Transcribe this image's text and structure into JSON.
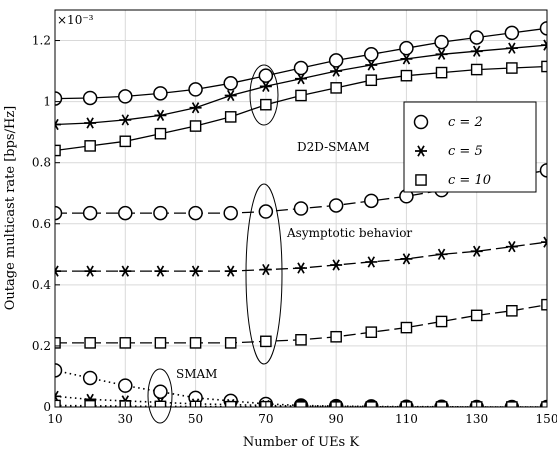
{
  "chart_data": {
    "type": "line",
    "xlabel": "Number of UEs K",
    "ylabel": "Outage multicast rate [bps/Hz]",
    "y_multiplier": "×10⁻³",
    "xlim": [
      10,
      150
    ],
    "ylim": [
      0,
      1.3
    ],
    "x_ticks": [
      10,
      30,
      50,
      70,
      90,
      110,
      130,
      150
    ],
    "y_ticks": [
      0,
      0.2,
      0.4,
      0.6,
      0.8,
      1,
      1.2
    ],
    "grid": true,
    "legend_position": "right",
    "legend": [
      {
        "label": "c = 2",
        "marker": "circle"
      },
      {
        "label": "c = 5",
        "marker": "star"
      },
      {
        "label": "c = 10",
        "marker": "square"
      }
    ],
    "annotations": [
      "D2D-SMAM",
      "Asymptotic behavior",
      "SMAM"
    ],
    "x": [
      10,
      20,
      30,
      40,
      50,
      60,
      70,
      80,
      90,
      100,
      110,
      120,
      130,
      140,
      150
    ],
    "series": [
      {
        "group": "D2D-SMAM",
        "marker": "circle",
        "line": "solid",
        "values": [
          1.01,
          1.012,
          1.017,
          1.027,
          1.04,
          1.06,
          1.085,
          1.11,
          1.135,
          1.155,
          1.175,
          1.195,
          1.21,
          1.225,
          1.24
        ]
      },
      {
        "group": "D2D-SMAM",
        "marker": "star",
        "line": "solid",
        "values": [
          0.925,
          0.93,
          0.94,
          0.955,
          0.98,
          1.02,
          1.05,
          1.075,
          1.1,
          1.12,
          1.14,
          1.155,
          1.165,
          1.175,
          1.185
        ]
      },
      {
        "group": "D2D-SMAM",
        "marker": "square",
        "line": "solid",
        "values": [
          0.84,
          0.855,
          0.87,
          0.895,
          0.92,
          0.95,
          0.99,
          1.02,
          1.045,
          1.07,
          1.085,
          1.095,
          1.105,
          1.11,
          1.115
        ]
      },
      {
        "group": "Asymptotic behavior",
        "marker": "circle",
        "line": "dashed",
        "values": [
          0.635,
          0.635,
          0.635,
          0.635,
          0.635,
          0.635,
          0.64,
          0.65,
          0.66,
          0.675,
          0.69,
          0.71,
          0.735,
          0.755,
          0.775
        ]
      },
      {
        "group": "Asymptotic behavior",
        "marker": "star",
        "line": "dashed",
        "values": [
          0.445,
          0.445,
          0.445,
          0.445,
          0.445,
          0.445,
          0.45,
          0.455,
          0.465,
          0.475,
          0.485,
          0.5,
          0.51,
          0.525,
          0.54
        ]
      },
      {
        "group": "Asymptotic behavior",
        "marker": "square",
        "line": "dashed",
        "values": [
          0.21,
          0.21,
          0.21,
          0.21,
          0.21,
          0.21,
          0.215,
          0.22,
          0.23,
          0.245,
          0.26,
          0.28,
          0.3,
          0.315,
          0.335
        ]
      },
      {
        "group": "SMAM",
        "marker": "circle",
        "line": "dotted",
        "values": [
          0.12,
          0.095,
          0.07,
          0.05,
          0.03,
          0.02,
          0.01,
          0.005,
          0.003,
          0.002,
          0.001,
          0.001,
          0,
          0,
          0
        ]
      },
      {
        "group": "SMAM",
        "marker": "star",
        "line": "dotted",
        "values": [
          0.035,
          0.025,
          0.02,
          0.015,
          0.01,
          0.008,
          0.005,
          0.003,
          0.002,
          0.001,
          0,
          0,
          0,
          0,
          0
        ]
      },
      {
        "group": "SMAM",
        "marker": "square",
        "line": "dotted",
        "values": [
          0.005,
          0.004,
          0.003,
          0.002,
          0.002,
          0.001,
          0.001,
          0,
          0,
          0,
          0,
          0,
          0,
          0,
          0
        ]
      }
    ]
  }
}
